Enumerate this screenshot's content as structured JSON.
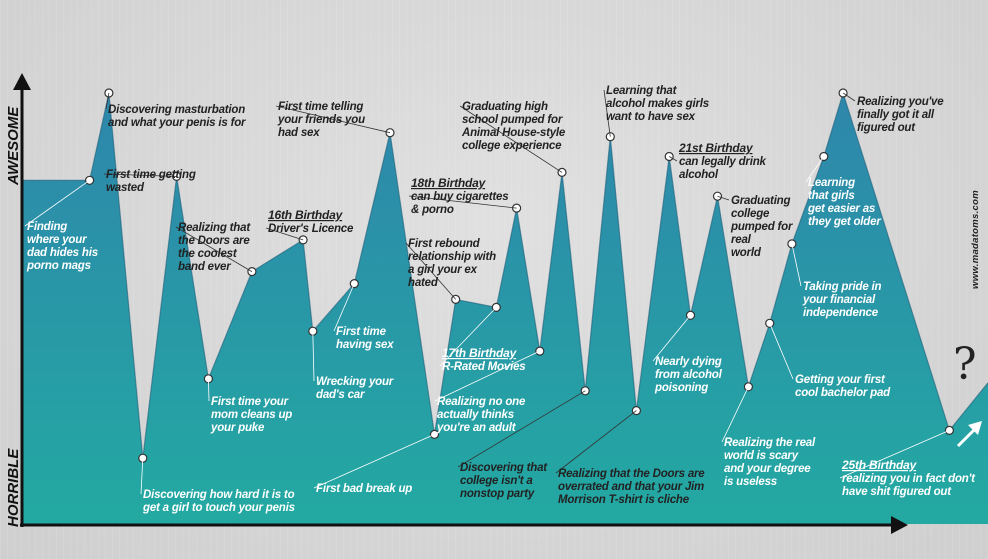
{
  "chart_data": {
    "type": "area",
    "y_axis": {
      "top_label": "AWESOME",
      "bottom_label": "HORRIBLE",
      "ylim": [
        0,
        100
      ]
    },
    "x_axis": {
      "label": ""
    },
    "colors": {
      "fill_top": "#2e86ab",
      "fill_bottom": "#23a9a2",
      "outline": "#1f5f79",
      "marker": "#ffffff"
    },
    "points": [
      {
        "x": 0,
        "y": 78
      },
      {
        "x": 7,
        "y": 78,
        "label": [
          "Finding",
          "where your",
          "dad hides his",
          "porno mags"
        ],
        "tone": "light"
      },
      {
        "x": 9,
        "y": 100,
        "label": [
          "Discovering masturbation",
          "and what your penis is for"
        ]
      },
      {
        "x": 12.5,
        "y": 8,
        "label": [
          "Discovering how hard it is to",
          "get a girl to touch your penis"
        ],
        "tone": "light"
      },
      {
        "x": 16,
        "y": 79,
        "label": [
          "First time getting",
          "wasted"
        ]
      },
      {
        "x": 19.3,
        "y": 28,
        "label": [
          "First time your",
          "mom cleans up",
          "your puke"
        ],
        "tone": "light"
      },
      {
        "x": 23.8,
        "y": 55,
        "label": [
          "Realizing that",
          "the Doors are",
          "the coolest",
          "band ever"
        ]
      },
      {
        "x": 29.1,
        "y": 63,
        "label": [
          "Driver's Licence"
        ],
        "header": "16th Birthday"
      },
      {
        "x": 30.1,
        "y": 40,
        "label": [
          "Wrecking your",
          "dad's car"
        ],
        "tone": "light"
      },
      {
        "x": 34.4,
        "y": 52,
        "label": [
          "First time",
          "having sex"
        ],
        "tone": "light"
      },
      {
        "x": 38.1,
        "y": 90,
        "label": [
          "First time telling",
          "your friends you",
          "had sex"
        ]
      },
      {
        "x": 42.7,
        "y": 14,
        "label": [
          "First bad break up"
        ],
        "tone": "light"
      },
      {
        "x": 44.9,
        "y": 48,
        "label": [
          "First rebound",
          "relationship with",
          "a girl your ex",
          "hated"
        ]
      },
      {
        "x": 49.1,
        "y": 46,
        "label": [
          "R-Rated Movies"
        ],
        "header": "17th Birthday",
        "tone": "light"
      },
      {
        "x": 51.2,
        "y": 71,
        "label": [
          "can buy cigarettes",
          "& porno"
        ],
        "header": "18th Birthday"
      },
      {
        "x": 53.6,
        "y": 35,
        "label": [
          "Realizing no one",
          "actually thinks",
          "you're an adult"
        ],
        "tone": "light"
      },
      {
        "x": 55.9,
        "y": 80,
        "label": [
          "Graduating  high",
          "school pumped for",
          "Animal House-style",
          "college experience"
        ]
      },
      {
        "x": 58.3,
        "y": 25,
        "label": [
          "Discovering that",
          "college isn't a",
          "nonstop party"
        ]
      },
      {
        "x": 60.9,
        "y": 89,
        "label": [
          "Learning that",
          "alcohol makes girls",
          "want to have sex"
        ]
      },
      {
        "x": 63.6,
        "y": 20,
        "label": [
          "Realizing that the Doors are",
          "overrated and that your Jim",
          "Morrison T-shirt is cliche"
        ]
      },
      {
        "x": 67.0,
        "y": 84,
        "label": [
          "can legally drink",
          "alcohol"
        ],
        "header": "21st Birthday"
      },
      {
        "x": 69.2,
        "y": 44,
        "label": [
          "Nearly dying",
          "from alcohol",
          "poisoning"
        ],
        "tone": "light"
      },
      {
        "x": 72.0,
        "y": 74,
        "label": [
          "Graduating",
          "college",
          "pumped for",
          "real",
          "world"
        ]
      },
      {
        "x": 75.2,
        "y": 26,
        "label": [
          "Realizing the real",
          "world is scary",
          "and your degree",
          "is useless"
        ],
        "tone": "light"
      },
      {
        "x": 77.4,
        "y": 42,
        "label": [
          "Getting your first",
          "cool bachelor pad"
        ],
        "tone": "light"
      },
      {
        "x": 79.7,
        "y": 62,
        "label": [
          "Taking pride in",
          "your financial",
          "independence"
        ],
        "tone": "light"
      },
      {
        "x": 83.0,
        "y": 84,
        "label": [
          "Learning",
          "that girls",
          "get easier as",
          "they get older"
        ],
        "tone": "light"
      },
      {
        "x": 85.0,
        "y": 100,
        "label": [
          "Realizing you've",
          "finally got it all",
          "figured out"
        ]
      },
      {
        "x": 96.0,
        "y": 15,
        "label": [
          "realizing you in fact don't",
          "have shit figured out"
        ],
        "header": "25th Birthday",
        "tone": "light"
      },
      {
        "x": 100,
        "y": 27
      }
    ],
    "trend_arrow": "up-right",
    "end_mark": "?",
    "credit": "www.madatoms.com"
  }
}
